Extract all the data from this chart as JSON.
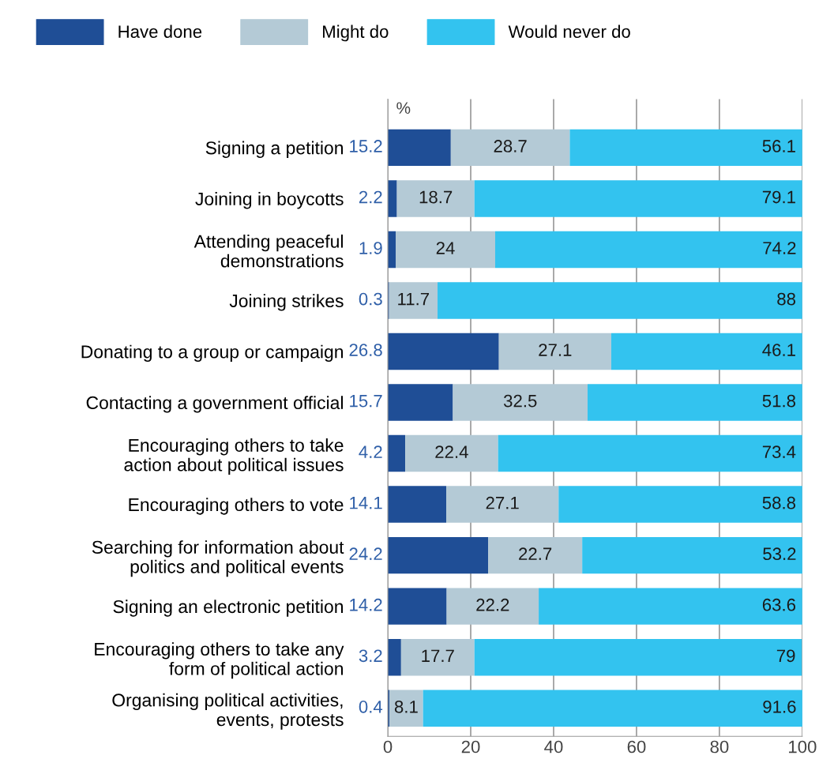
{
  "chart_data": {
    "type": "bar",
    "orientation": "horizontal",
    "stacked": true,
    "data_labels": true,
    "legend": "top",
    "grid": "x",
    "xlabel": "%",
    "categories": [
      "Signing a petition",
      "Joining in boycotts",
      "Attending peaceful\ndemonstrations",
      "Joining strikes",
      "Donating to a group or campaign",
      "Contacting a government official",
      "Encouraging others to take\naction about political issues",
      "Encouraging others to vote",
      "Searching for information about\npolitics and political events",
      "Signing an electronic petition",
      "Encouraging others to take any\nform of political action",
      "Organising political activities,\nevents, protests"
    ],
    "series": [
      {
        "name": "Have done",
        "color": "#1f4e96",
        "values": [
          15.2,
          2.2,
          1.9,
          0.3,
          26.8,
          15.7,
          4.2,
          14.1,
          24.2,
          14.2,
          3.2,
          0.4
        ]
      },
      {
        "name": "Might do",
        "color": "#b4cad6",
        "values": [
          28.7,
          18.7,
          24,
          11.7,
          27.1,
          32.5,
          22.4,
          27.1,
          22.7,
          22.2,
          17.7,
          8.1
        ]
      },
      {
        "name": "Would never do",
        "color": "#33c3ef",
        "values": [
          56.1,
          79.1,
          74.2,
          88,
          46.1,
          51.8,
          73.4,
          58.8,
          53.2,
          63.6,
          79,
          91.6
        ]
      }
    ],
    "xlim": [
      0,
      100
    ],
    "xticks": [
      0,
      20,
      40,
      60,
      80,
      100
    ]
  }
}
